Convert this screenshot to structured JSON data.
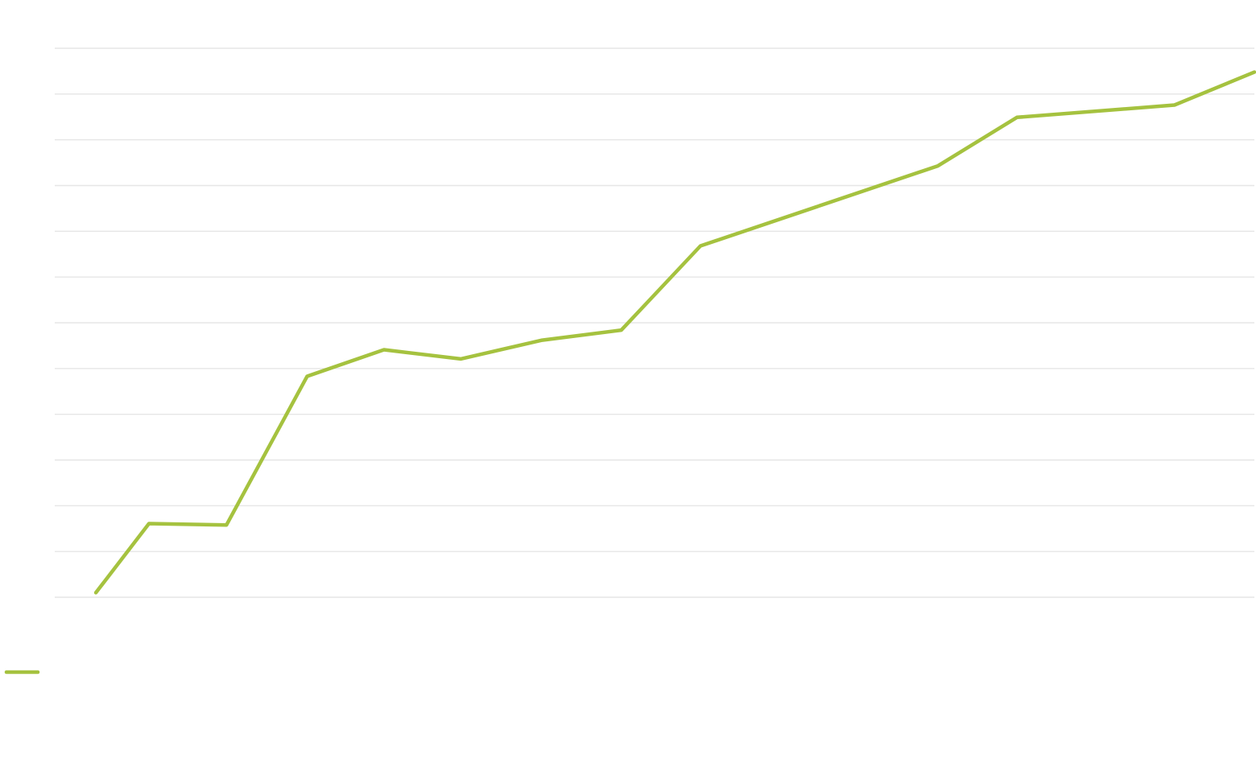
{
  "chart_data": {
    "type": "line",
    "title": "",
    "xlabel": "",
    "ylabel": "",
    "ylim": [
      0,
      12
    ],
    "grid": true,
    "legend": "bottom-left",
    "series": [
      {
        "name": "",
        "color": "#a5c23f",
        "values": [
          {
            "x": 0.0,
            "y": 0.1
          },
          {
            "x": 0.67,
            "y": 1.61
          },
          {
            "x": 1.65,
            "y": 1.58
          },
          {
            "x": 2.67,
            "y": 4.83
          },
          {
            "x": 3.64,
            "y": 5.41
          },
          {
            "x": 4.61,
            "y": 5.21
          },
          {
            "x": 5.64,
            "y": 5.62
          },
          {
            "x": 6.64,
            "y": 5.84
          },
          {
            "x": 7.64,
            "y": 7.68
          },
          {
            "x": 10.64,
            "y": 9.43
          },
          {
            "x": 11.64,
            "y": 10.49
          },
          {
            "x": 13.63,
            "y": 10.76
          },
          {
            "x": 14.64,
            "y": 11.48
          }
        ]
      }
    ]
  }
}
